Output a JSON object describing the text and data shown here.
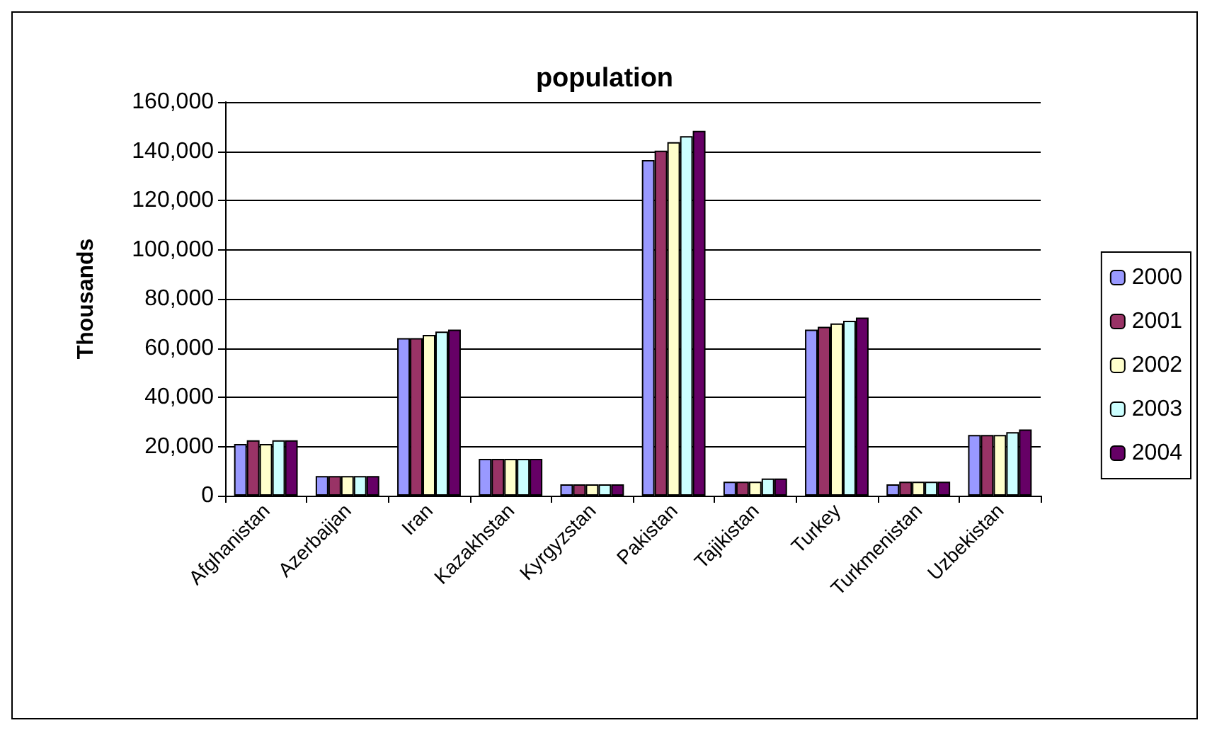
{
  "chart_data": {
    "type": "bar",
    "title": "population",
    "ylabel": "Thousands",
    "categories": [
      "Afghanistan",
      "Azerbaijan",
      "Iran",
      "Kazakhstan",
      "Kyrgyzstan",
      "Pakistan",
      "Tajikistan",
      "Turkey",
      "Turkmenistan",
      "Uzbekistan"
    ],
    "series": [
      {
        "name": "2000",
        "color": "#9999ff",
        "values": [
          21000,
          8000,
          64000,
          15000,
          4600,
          136400,
          5700,
          67500,
          4600,
          24700
        ]
      },
      {
        "name": "2001",
        "color": "#993366",
        "values": [
          22500,
          8000,
          64000,
          15000,
          4600,
          140200,
          5700,
          68600,
          5700,
          24700
        ]
      },
      {
        "name": "2002",
        "color": "#ffffcc",
        "values": [
          21000,
          8000,
          65300,
          15000,
          4600,
          143700,
          5700,
          70000,
          5700,
          24700
        ]
      },
      {
        "name": "2003",
        "color": "#ccffff",
        "values": [
          22500,
          8000,
          66700,
          15000,
          4600,
          146100,
          7000,
          71100,
          5700,
          25800
        ]
      },
      {
        "name": "2004",
        "color": "#660066",
        "values": [
          22500,
          8000,
          67500,
          15000,
          4600,
          148300,
          7000,
          72400,
          5700,
          26900
        ]
      }
    ],
    "ylim": [
      0,
      160000
    ],
    "yticks": [
      0,
      {
        "value": 20000,
        "label": "20,000"
      },
      {
        "value": 40000,
        "label": "40,000"
      },
      {
        "value": 60000,
        "label": "60,000"
      },
      {
        "value": 80000,
        "label": "80,000"
      },
      {
        "value": 100000,
        "label": "100,000"
      },
      {
        "value": 120000,
        "label": "120,000"
      },
      {
        "value": 140000,
        "label": "140,000"
      },
      {
        "value": 160000,
        "label": "160,000"
      }
    ],
    "grid": "y",
    "legend": "right"
  }
}
